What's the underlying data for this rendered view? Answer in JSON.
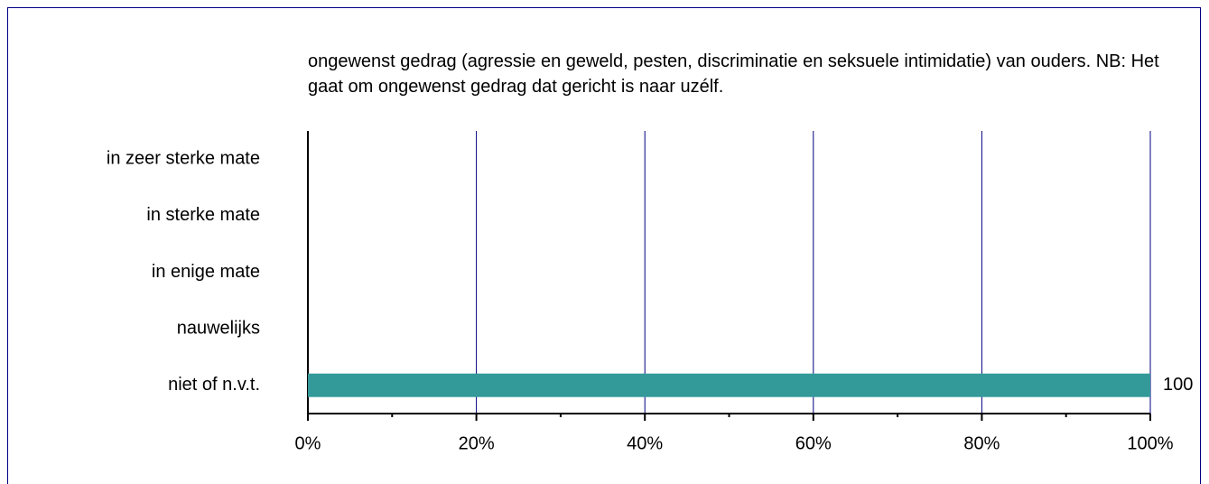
{
  "chart_data": {
    "type": "hbar",
    "title": "ongewenst gedrag (agressie en geweld, pesten, discriminatie en seksuele intimidatie) van ouders. NB: Het gaat om ongewenst gedrag dat gericht is naar uzélf.",
    "categories": [
      "in zeer sterke mate",
      "in sterke mate",
      "in enige mate",
      "nauwelijks",
      "niet of n.v.t."
    ],
    "values": [
      0,
      0,
      0,
      0,
      100
    ],
    "color": "#339999",
    "xlim": [
      0,
      100
    ],
    "xticks": [
      {
        "value": 0,
        "label": "0%"
      },
      {
        "value": 20,
        "label": "20%"
      },
      {
        "value": 40,
        "label": "40%"
      },
      {
        "value": 60,
        "label": "60%"
      },
      {
        "value": 80,
        "label": "80%"
      },
      {
        "value": 100,
        "label": "100%"
      }
    ],
    "xminorticks": [
      10,
      30,
      50,
      70,
      90
    ],
    "grid": true,
    "grid_color": "#000080"
  }
}
